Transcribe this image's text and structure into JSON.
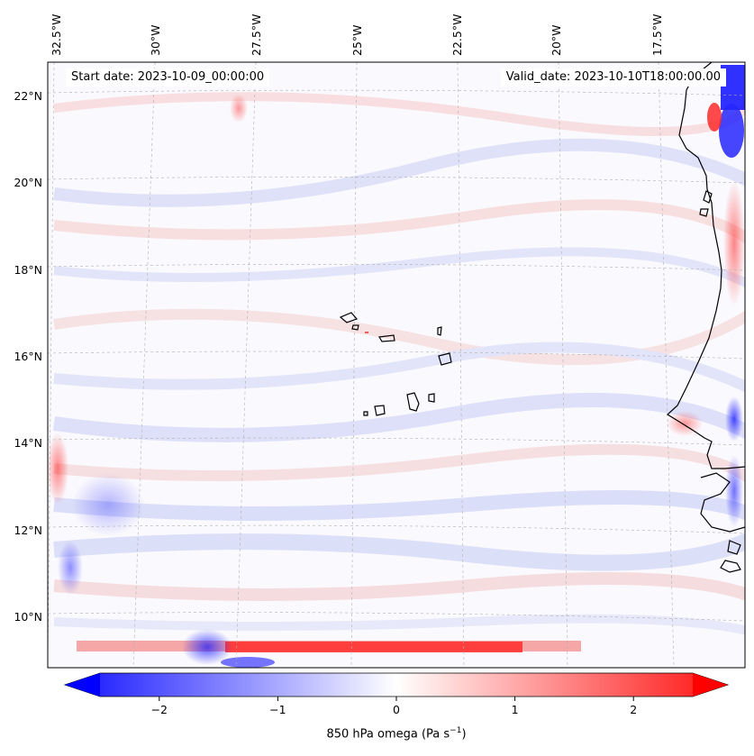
{
  "map": {
    "start_label": "Start date: 2023-10-09_00:00:00",
    "valid_label": "Valid_date: 2023-10-10T18:00:00.00",
    "lon_ticks": [
      "32.5°W",
      "30°W",
      "27.5°W",
      "25°W",
      "22.5°W",
      "20°W",
      "17.5°W"
    ],
    "lat_ticks": [
      "22°N",
      "20°N",
      "18°N",
      "16°N",
      "14°N",
      "12°N",
      "10°N"
    ],
    "extent": {
      "lon_min": -33.0,
      "lon_max": -15.5,
      "lat_min": 8.9,
      "lat_max": 22.8
    }
  },
  "colorbar": {
    "label": "850 hPa omega (Pa s",
    "label_sup": "−1",
    "label_close": ")",
    "vmin": -2.5,
    "vmax": 2.5,
    "tick_values": [
      -2,
      -1,
      0,
      1,
      2
    ],
    "tick_labels": [
      "−2",
      "−1",
      "0",
      "1",
      "2"
    ],
    "color_low": "#0000ff",
    "color_mid": "#ffffff",
    "color_high": "#ff0000"
  }
}
